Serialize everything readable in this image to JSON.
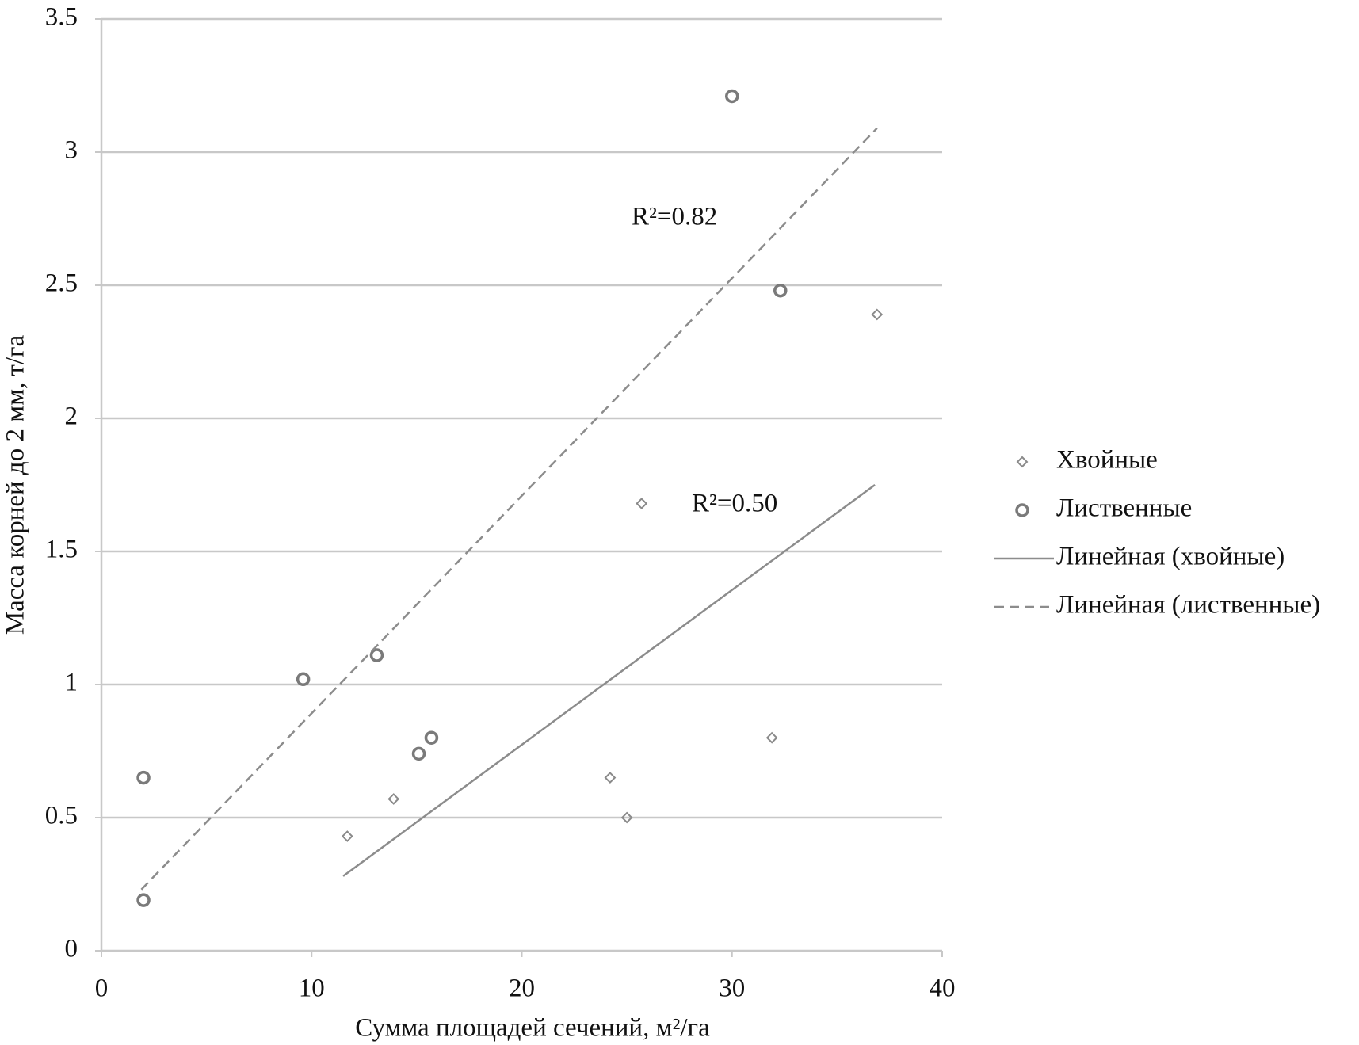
{
  "chart_data": {
    "type": "scatter",
    "x_label": "Сумма площадей сечений, м²/га",
    "y_label": "Масса корней до 2 мм, т/га",
    "xlim": [
      0,
      40
    ],
    "xticks": [
      0,
      10,
      20,
      30,
      40
    ],
    "ylim": [
      0,
      3.5
    ],
    "yticks": [
      0,
      0.5,
      1,
      1.5,
      2,
      2.5,
      3,
      3.5
    ],
    "grid": true,
    "legend": "right",
    "annotations": [
      "R²=0.82",
      "R²=0.50"
    ],
    "series": [
      {
        "name": "Хвойные",
        "type": "scatter",
        "marker": "diamond",
        "color": "#8a8a8a",
        "x": [
          11.7,
          13.9,
          24.2,
          25.0,
          25.7,
          31.9,
          36.9
        ],
        "values": [
          0.43,
          0.57,
          0.65,
          0.5,
          1.68,
          0.8,
          2.39
        ]
      },
      {
        "name": "Лиственные",
        "type": "scatter",
        "marker": "circle",
        "color": "#7a7a7a",
        "x": [
          2.0,
          2.0,
          9.6,
          13.1,
          15.1,
          15.7,
          30.0,
          32.3
        ],
        "values": [
          0.19,
          0.65,
          1.02,
          1.11,
          0.74,
          0.8,
          3.21,
          2.48
        ]
      },
      {
        "name": "Линейная (хвойные)",
        "type": "line",
        "dash": false,
        "color": "#8c8c8c",
        "x": [
          11.5,
          36.8
        ],
        "values": [
          0.28,
          1.75
        ]
      },
      {
        "name": "Линейная (лиственные)",
        "type": "line",
        "dash": true,
        "color": "#8c8c8c",
        "x": [
          1.9,
          36.9
        ],
        "values": [
          0.23,
          3.09
        ]
      }
    ]
  }
}
